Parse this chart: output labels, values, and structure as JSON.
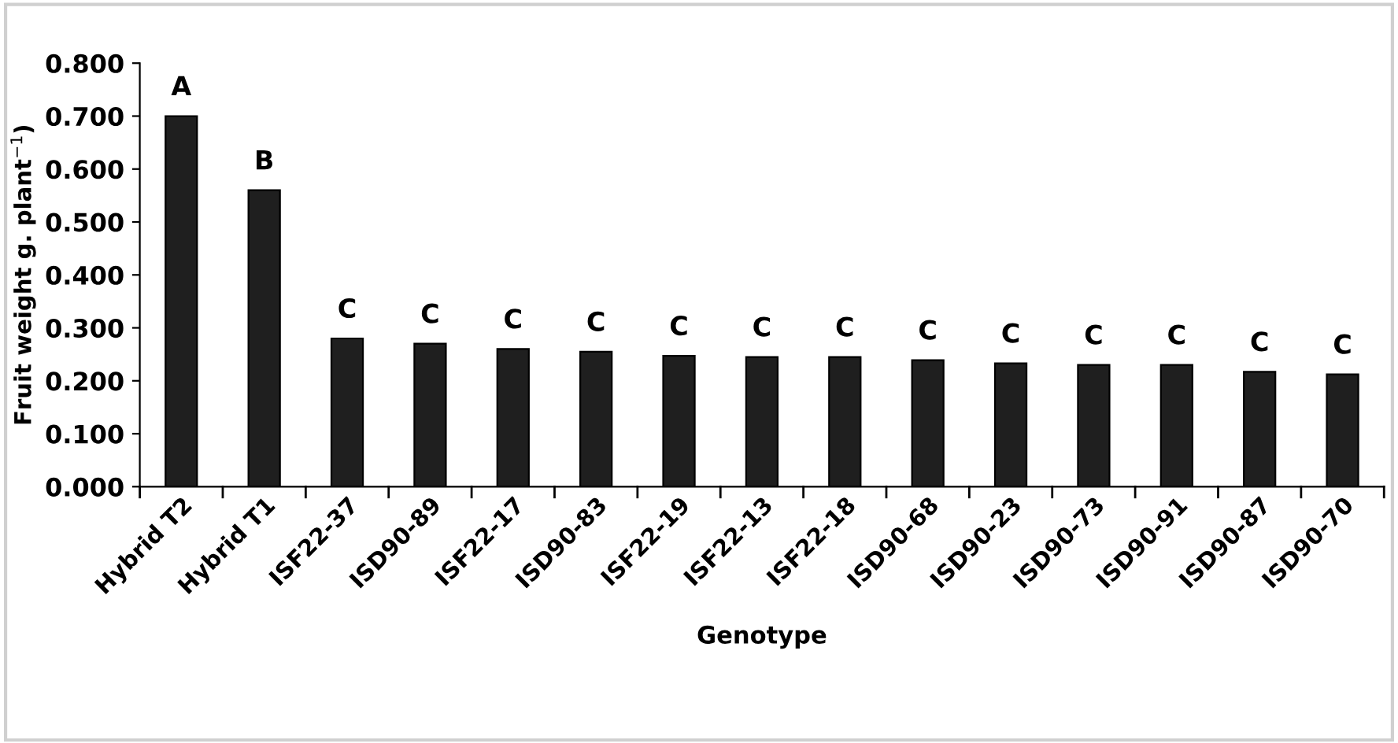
{
  "chart_data": {
    "type": "bar",
    "xlabel": "Genotype",
    "ylabel": "Fruit weight g. plant$^{−1}$)",
    "categories": [
      "Hybrid T2",
      "Hybrid T1",
      "ISF22-37",
      "ISD90-89",
      "ISF22-17",
      "ISD90-83",
      "ISF22-19",
      "ISF22-13",
      "ISF22-18",
      "ISD90-68",
      "ISD90-23",
      "ISD90-73",
      "ISD90-91",
      "ISD90-87",
      "ISD90-70"
    ],
    "values": [
      0.7,
      0.56,
      0.28,
      0.27,
      0.26,
      0.255,
      0.247,
      0.245,
      0.245,
      0.239,
      0.233,
      0.23,
      0.23,
      0.217,
      0.212
    ],
    "color": "#1f1f1f",
    "ylim": [
      0,
      0.8
    ],
    "yticks": [
      {
        "value": 0,
        "label": "0.000"
      },
      {
        "value": 0.1,
        "label": "0.100"
      },
      {
        "value": 0.2,
        "label": "0.200"
      },
      {
        "value": 0.3,
        "label": "0.300"
      },
      {
        "value": 0.4,
        "label": "0.400"
      },
      {
        "value": 0.5,
        "label": "0.500"
      },
      {
        "value": 0.6,
        "label": "0.600"
      },
      {
        "value": 0.7,
        "label": "0.700"
      },
      {
        "value": 0.8,
        "label": "0.800"
      }
    ],
    "annotations": [
      {
        "text": "A",
        "x": "Hybrid T2",
        "y": 0.7
      },
      {
        "text": "B",
        "x": "Hybrid T1",
        "y": 0.56
      },
      {
        "text": "C",
        "x": "ISF22-37",
        "y": 0.28
      },
      {
        "text": "C",
        "x": "ISD90-89",
        "y": 0.27
      },
      {
        "text": "C",
        "x": "ISF22-17",
        "y": 0.26
      },
      {
        "text": "C",
        "x": "ISD90-83",
        "y": 0.255
      },
      {
        "text": "C",
        "x": "ISF22-19",
        "y": 0.247
      },
      {
        "text": "C",
        "x": "ISF22-13",
        "y": 0.245
      },
      {
        "text": "C",
        "x": "ISF22-18",
        "y": 0.245
      },
      {
        "text": "C",
        "x": "ISD90-68",
        "y": 0.239
      },
      {
        "text": "C",
        "x": "ISD90-23",
        "y": 0.233
      },
      {
        "text": "C",
        "x": "ISD90-73",
        "y": 0.23
      },
      {
        "text": "C",
        "x": "ISD90-91",
        "y": 0.23
      },
      {
        "text": "C",
        "x": "ISD90-87",
        "y": 0.217
      },
      {
        "text": "C",
        "x": "ISD90-70",
        "y": 0.212
      }
    ],
    "grid": false
  }
}
